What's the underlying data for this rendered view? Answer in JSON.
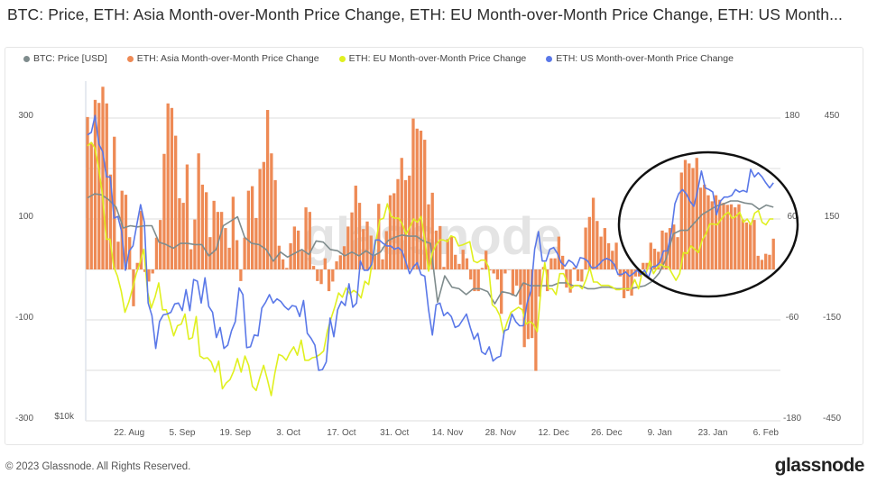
{
  "title": "BTC: Price, ETH: Asia Month-over-Month Price Change, ETH: EU Month-over-Month Price Change, ETH: US Month...",
  "legend": [
    {
      "label": "BTC: Price [USD]",
      "color": "#7f8c8d"
    },
    {
      "label": "ETH: Asia Month-over-Month Price Change",
      "color": "#ee8a55"
    },
    {
      "label": "ETH: EU Month-over-Month Price Change",
      "color": "#e0f020"
    },
    {
      "label": "ETH: US Month-over-Month Price Change",
      "color": "#5a78e8"
    }
  ],
  "watermark": "glassnode",
  "footer": {
    "copyright": "© 2023 Glassnode. All Rights Reserved.",
    "logo": "glassnode"
  },
  "chart_data": {
    "type": "bar+line",
    "days_span": 181,
    "x_ticks": [
      {
        "label": "22. Aug",
        "day": 11
      },
      {
        "label": "5. Sep",
        "day": 25
      },
      {
        "label": "19. Sep",
        "day": 39
      },
      {
        "label": "3. Oct",
        "day": 53
      },
      {
        "label": "17. Oct",
        "day": 67
      },
      {
        "label": "31. Oct",
        "day": 81
      },
      {
        "label": "14. Nov",
        "day": 95
      },
      {
        "label": "28. Nov",
        "day": 109
      },
      {
        "label": "12. Dec",
        "day": 123
      },
      {
        "label": "26. Dec",
        "day": 137
      },
      {
        "label": "9. Jan",
        "day": 151
      },
      {
        "label": "23. Jan",
        "day": 165
      },
      {
        "label": "6. Feb",
        "day": 179
      }
    ],
    "axes": {
      "left": {
        "ticks": [
          "300",
          "100",
          "-100",
          "-300"
        ],
        "values": [
          300,
          100,
          -100,
          -300
        ],
        "ylim": [
          -300,
          300
        ]
      },
      "right1": {
        "ticks": [
          "180",
          "60",
          "-60",
          "-180"
        ],
        "values": [
          180,
          60,
          -60,
          -180
        ],
        "ylim": [
          -180,
          180
        ]
      },
      "right2": {
        "ticks": [
          "450",
          "150",
          "-150",
          "-450"
        ],
        "values": [
          450,
          150,
          -150,
          -450
        ],
        "ylim": [
          -450,
          450
        ]
      },
      "btc_label": "$10k",
      "btc_log_base": 10000
    },
    "series": [
      {
        "name": "ETH: Asia Month-over-Month Price Change",
        "kind": "bar",
        "axis": "left",
        "color": "#ee8a55",
        "values": [
          302,
          251,
          336,
          330,
          362,
          329,
          188,
          263,
          55,
          156,
          148,
          64,
          -73,
          13,
          116,
          -5,
          -24,
          -8,
          63,
          98,
          229,
          329,
          320,
          265,
          141,
          132,
          208,
          40,
          99,
          230,
          168,
          153,
          64,
          136,
          114,
          114,
          82,
          43,
          144,
          58,
          -23,
          63,
          156,
          165,
          102,
          199,
          213,
          316,
          230,
          177,
          47,
          20,
          3,
          52,
          85,
          77,
          37,
          123,
          114,
          7,
          -23,
          -29,
          22,
          -43,
          -24,
          16,
          28,
          46,
          85,
          113,
          166,
          132,
          80,
          95,
          67,
          28,
          130,
          20,
          76,
          147,
          151,
          179,
          221,
          177,
          186,
          299,
          279,
          275,
          257,
          129,
          152,
          77,
          86,
          5,
          60,
          65,
          29,
          11,
          39,
          22,
          -20,
          -43,
          -43,
          3,
          37,
          -2,
          -8,
          -20,
          -88,
          -8,
          -1,
          -52,
          -32,
          -70,
          -154,
          -138,
          -136,
          -201,
          -54,
          5,
          -43,
          22,
          22,
          65,
          27,
          -36,
          -46,
          4,
          -23,
          -24,
          83,
          104,
          142,
          96,
          65,
          82,
          52,
          37,
          53,
          -14,
          -57,
          -43,
          -52,
          -14,
          -14,
          13,
          13,
          53,
          41,
          35,
          77,
          73,
          82,
          89,
          64,
          192,
          217,
          210,
          201,
          221,
          162,
          168,
          147,
          135,
          147,
          138,
          132,
          128,
          129,
          123,
          129,
          99,
          93,
          90,
          98,
          27,
          19,
          31,
          29,
          61
        ]
      },
      {
        "name": "ETH: EU Month-over-Month Price Change",
        "kind": "line",
        "axis": "right1",
        "color": "#e0f020",
        "values": [
          147,
          151,
          144,
          120,
          88,
          36,
          36,
          3,
          -8,
          -26,
          -51,
          -39,
          -23,
          -5,
          8,
          24,
          -26,
          -46,
          -33,
          -16,
          -48,
          -48,
          -62,
          -79,
          -67,
          -65,
          -53,
          -83,
          -81,
          -56,
          -103,
          -106,
          -105,
          -110,
          -122,
          -109,
          -142,
          -135,
          -131,
          -121,
          -106,
          -122,
          -103,
          -114,
          -139,
          -144,
          -128,
          -114,
          -131,
          -150,
          -123,
          -101,
          -103,
          -108,
          -99,
          -92,
          -102,
          -84,
          -108,
          -108,
          -105,
          -104,
          -101,
          -97,
          -73,
          -58,
          -44,
          -28,
          -33,
          -22,
          -29,
          -25,
          -28,
          -34,
          -14,
          -18,
          10,
          35,
          59,
          61,
          78,
          63,
          61,
          61,
          54,
          42,
          50,
          60,
          56,
          63,
          35,
          -2,
          20,
          29,
          35,
          35,
          33,
          40,
          38,
          28,
          29,
          31,
          33,
          10,
          8,
          11,
          11,
          3,
          -42,
          -46,
          -55,
          -76,
          -62,
          -51,
          -48,
          -45,
          -48,
          -65,
          -62,
          -65,
          -74,
          -23,
          8,
          -23,
          -23,
          -30,
          -5,
          -5,
          -15,
          -23,
          -19,
          -19,
          -23,
          -12,
          2,
          -15,
          -15,
          -19,
          -19,
          -19,
          -21,
          -24,
          -24,
          -23,
          -23,
          -23,
          -12,
          -23,
          -3,
          -5,
          10,
          -5,
          2,
          6,
          3,
          3,
          -5,
          -13,
          -5,
          20,
          19,
          28,
          24,
          20,
          35,
          42,
          54,
          54,
          53,
          59,
          65,
          68,
          61,
          63,
          68,
          56,
          60,
          53,
          67,
          70,
          56,
          53,
          60,
          60
        ]
      },
      {
        "name": "ETH: US Month-over-Month Price Change",
        "kind": "line",
        "axis": "right1",
        "color": "#5a78e8",
        "values": [
          160,
          163,
          183,
          149,
          140,
          110,
          110,
          61,
          63,
          45,
          -1,
          22,
          28,
          53,
          77,
          56,
          -40,
          -55,
          -94,
          -62,
          -54,
          -53,
          -51,
          -41,
          -40,
          -49,
          -24,
          -49,
          -12,
          -14,
          -40,
          -10,
          -44,
          -51,
          -81,
          -69,
          -94,
          -90,
          -73,
          -62,
          -22,
          -30,
          -93,
          -92,
          -78,
          -79,
          -46,
          -39,
          -30,
          -40,
          -35,
          -38,
          -44,
          -48,
          -43,
          -44,
          -56,
          -37,
          -76,
          -82,
          -90,
          -120,
          -119,
          -110,
          -58,
          -80,
          -48,
          -38,
          -43,
          -17,
          -45,
          -40,
          10,
          -1,
          -1,
          6,
          35,
          35,
          31,
          28,
          28,
          24,
          26,
          22,
          9,
          -5,
          3,
          8,
          -6,
          -8,
          -48,
          -78,
          -42,
          -40,
          -55,
          -51,
          -56,
          -69,
          -67,
          -60,
          -53,
          -69,
          -83,
          -76,
          -98,
          -101,
          -92,
          -109,
          -105,
          -103,
          -73,
          -71,
          -53,
          -62,
          -67,
          -67,
          -40,
          -26,
          24,
          45,
          10,
          10,
          24,
          26,
          19,
          8,
          4,
          11,
          8,
          2,
          14,
          13,
          10,
          2,
          2,
          6,
          11,
          13,
          11,
          6,
          -6,
          -6,
          -3,
          -8,
          -5,
          -1,
          -6,
          -1,
          -10,
          3,
          4,
          8,
          22,
          22,
          42,
          78,
          90,
          95,
          90,
          81,
          75,
          94,
          117,
          97,
          95,
          92,
          65,
          81,
          86,
          86,
          88,
          95,
          92,
          94,
          92,
          119,
          110,
          115,
          110,
          103,
          97,
          103
        ]
      },
      {
        "name": "BTC: Price [USD]",
        "kind": "line",
        "axis": "btc-log",
        "color": "#7f8c8d",
        "values": [
          24300,
          24700,
          24600,
          24100,
          23400,
          21500,
          21700,
          21600,
          21700,
          21700,
          20300,
          20100,
          19800,
          20200,
          20200,
          20100,
          20100,
          19200,
          19700,
          21700,
          22100,
          22500,
          20700,
          20200,
          20100,
          19700,
          18800,
          19500,
          19100,
          19400,
          19700,
          19300,
          20400,
          20300,
          19700,
          19600,
          19200,
          19500,
          19200,
          19600,
          19200,
          19500,
          20400,
          20700,
          20900,
          20800,
          20800,
          20400,
          20200,
          15900,
          17700,
          16900,
          16800,
          16400,
          16800,
          16800,
          16600,
          15800,
          16600,
          16500,
          16300,
          17200,
          17000,
          17000,
          17000,
          17000,
          17200,
          17200,
          17000,
          17000,
          16800,
          16800,
          16900,
          16900,
          16800,
          16800,
          16800,
          16900,
          17000,
          17300,
          17900,
          19000,
          21000,
          21300,
          21300,
          22000,
          22700,
          23100,
          23500,
          23700,
          24000,
          24000,
          23800,
          23700,
          23200,
          23600,
          23400
        ]
      }
    ]
  }
}
